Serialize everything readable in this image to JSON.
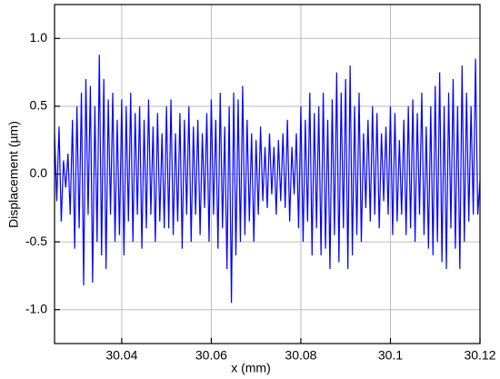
{
  "chart_data": {
    "type": "line",
    "x_label": "x (mm)",
    "y_label": "Displacement (µm)",
    "xlim": [
      30.025,
      30.12
    ],
    "ylim": [
      -1.25,
      1.25
    ],
    "xticks": [
      30.04,
      30.06,
      30.08,
      30.1,
      30.12
    ],
    "yticks": [
      {
        "value": -1.0,
        "label": "-1.0"
      },
      -0.5,
      {
        "value": 0.0,
        "label": "0.0"
      },
      0.5,
      {
        "value": 1.0,
        "label": "1.0"
      }
    ],
    "grid": true,
    "x": [
      30.025,
      30.0255,
      30.026,
      30.0265,
      30.027,
      30.0275,
      30.028,
      30.0285,
      30.029,
      30.0295,
      30.03,
      30.0305,
      30.031,
      30.0315,
      30.032,
      30.0325,
      30.033,
      30.0335,
      30.034,
      30.0345,
      30.035,
      30.0355,
      30.036,
      30.0365,
      30.037,
      30.0375,
      30.038,
      30.0385,
      30.039,
      30.0395,
      30.04,
      30.0405,
      30.041,
      30.0415,
      30.042,
      30.0425,
      30.043,
      30.0435,
      30.044,
      30.0445,
      30.045,
      30.0455,
      30.046,
      30.0465,
      30.047,
      30.0475,
      30.048,
      30.0485,
      30.049,
      30.0495,
      30.05,
      30.0505,
      30.051,
      30.0515,
      30.052,
      30.0525,
      30.053,
      30.0535,
      30.054,
      30.0545,
      30.055,
      30.0555,
      30.056,
      30.0565,
      30.057,
      30.0575,
      30.058,
      30.0585,
      30.059,
      30.0595,
      30.06,
      30.0605,
      30.061,
      30.0615,
      30.062,
      30.0625,
      30.063,
      30.0635,
      30.064,
      30.0645,
      30.065,
      30.0655,
      30.066,
      30.0665,
      30.067,
      30.0675,
      30.068,
      30.0685,
      30.069,
      30.0695,
      30.07,
      30.0705,
      30.071,
      30.0715,
      30.072,
      30.0725,
      30.073,
      30.0735,
      30.074,
      30.0745,
      30.075,
      30.0755,
      30.076,
      30.0765,
      30.077,
      30.0775,
      30.078,
      30.0785,
      30.079,
      30.0795,
      30.08,
      30.0805,
      30.081,
      30.0815,
      30.082,
      30.0825,
      30.083,
      30.0835,
      30.084,
      30.0845,
      30.085,
      30.0855,
      30.086,
      30.0865,
      30.087,
      30.0875,
      30.088,
      30.0885,
      30.089,
      30.0895,
      30.09,
      30.0905,
      30.091,
      30.0915,
      30.092,
      30.0925,
      30.093,
      30.0935,
      30.094,
      30.0945,
      30.095,
      30.0955,
      30.096,
      30.0965,
      30.097,
      30.0975,
      30.098,
      30.0985,
      30.099,
      30.0995,
      30.1,
      30.1005,
      30.101,
      30.1015,
      30.102,
      30.1025,
      30.103,
      30.1035,
      30.104,
      30.1045,
      30.105,
      30.1055,
      30.106,
      30.1065,
      30.107,
      30.1075,
      30.108,
      30.1085,
      30.109,
      30.1095,
      30.11,
      30.1105,
      30.111,
      30.1115,
      30.112,
      30.1125,
      30.113,
      30.1135,
      30.114,
      30.1145,
      30.115,
      30.1155,
      30.116,
      30.1165,
      30.117,
      30.1175,
      30.118,
      30.1185,
      30.119,
      30.1195,
      30.12
    ],
    "series": [
      {
        "color": "#0000ff",
        "values": [
          0.3,
          -0.2,
          0.35,
          -0.35,
          0.1,
          -0.1,
          0.15,
          -0.3,
          0.4,
          -0.55,
          0.5,
          -0.4,
          0.6,
          -0.82,
          0.7,
          -0.3,
          0.65,
          -0.8,
          0.5,
          -0.5,
          0.88,
          -0.6,
          0.7,
          -0.7,
          0.55,
          -0.3,
          0.6,
          -0.5,
          0.4,
          -0.45,
          0.55,
          -0.6,
          0.5,
          -0.35,
          0.6,
          -0.5,
          0.45,
          -0.3,
          0.5,
          -0.55,
          0.4,
          -0.4,
          0.55,
          -0.3,
          0.35,
          -0.5,
          0.45,
          -0.35,
          0.3,
          -0.4,
          0.5,
          -0.4,
          0.55,
          -0.45,
          0.3,
          -0.35,
          0.45,
          -0.55,
          0.4,
          -0.3,
          0.5,
          -0.5,
          0.35,
          -0.3,
          0.4,
          -0.45,
          0.3,
          -0.25,
          0.45,
          -0.5,
          0.55,
          -0.3,
          0.4,
          -0.55,
          0.6,
          -0.4,
          0.35,
          -0.7,
          0.5,
          -0.95,
          0.6,
          -0.6,
          0.55,
          -0.5,
          0.65,
          -0.45,
          0.4,
          -0.35,
          0.3,
          -0.5,
          0.25,
          -0.3,
          0.35,
          -0.2,
          0.2,
          -0.25,
          0.3,
          -0.15,
          0.2,
          -0.3,
          0.25,
          -0.2,
          0.3,
          -0.25,
          0.4,
          -0.35,
          0.2,
          -0.15,
          0.3,
          -0.4,
          0.5,
          -0.5,
          0.4,
          -0.35,
          0.6,
          -0.6,
          0.45,
          -0.4,
          0.5,
          -0.6,
          0.6,
          -0.55,
          0.4,
          -0.7,
          0.55,
          -0.45,
          0.75,
          -0.65,
          0.6,
          -0.4,
          0.7,
          -0.7,
          0.8,
          -0.6,
          0.5,
          -0.45,
          0.6,
          -0.5,
          0.3,
          -0.25,
          0.4,
          -0.35,
          0.5,
          -0.3,
          0.45,
          -0.4,
          0.3,
          -0.2,
          0.35,
          -0.3,
          0.5,
          -0.45,
          0.45,
          -0.35,
          0.25,
          -0.3,
          0.4,
          -0.45,
          0.5,
          -0.4,
          0.55,
          -0.5,
          0.45,
          -0.3,
          0.6,
          -0.45,
          0.35,
          -0.55,
          0.5,
          -0.6,
          0.65,
          -0.5,
          0.75,
          -0.65,
          0.5,
          -0.7,
          0.6,
          -0.4,
          0.7,
          -0.55,
          0.5,
          -0.7,
          0.8,
          -0.5,
          0.6,
          -0.35,
          0.5,
          -0.3,
          0.85,
          -0.3,
          -0.05
        ]
      }
    ]
  }
}
